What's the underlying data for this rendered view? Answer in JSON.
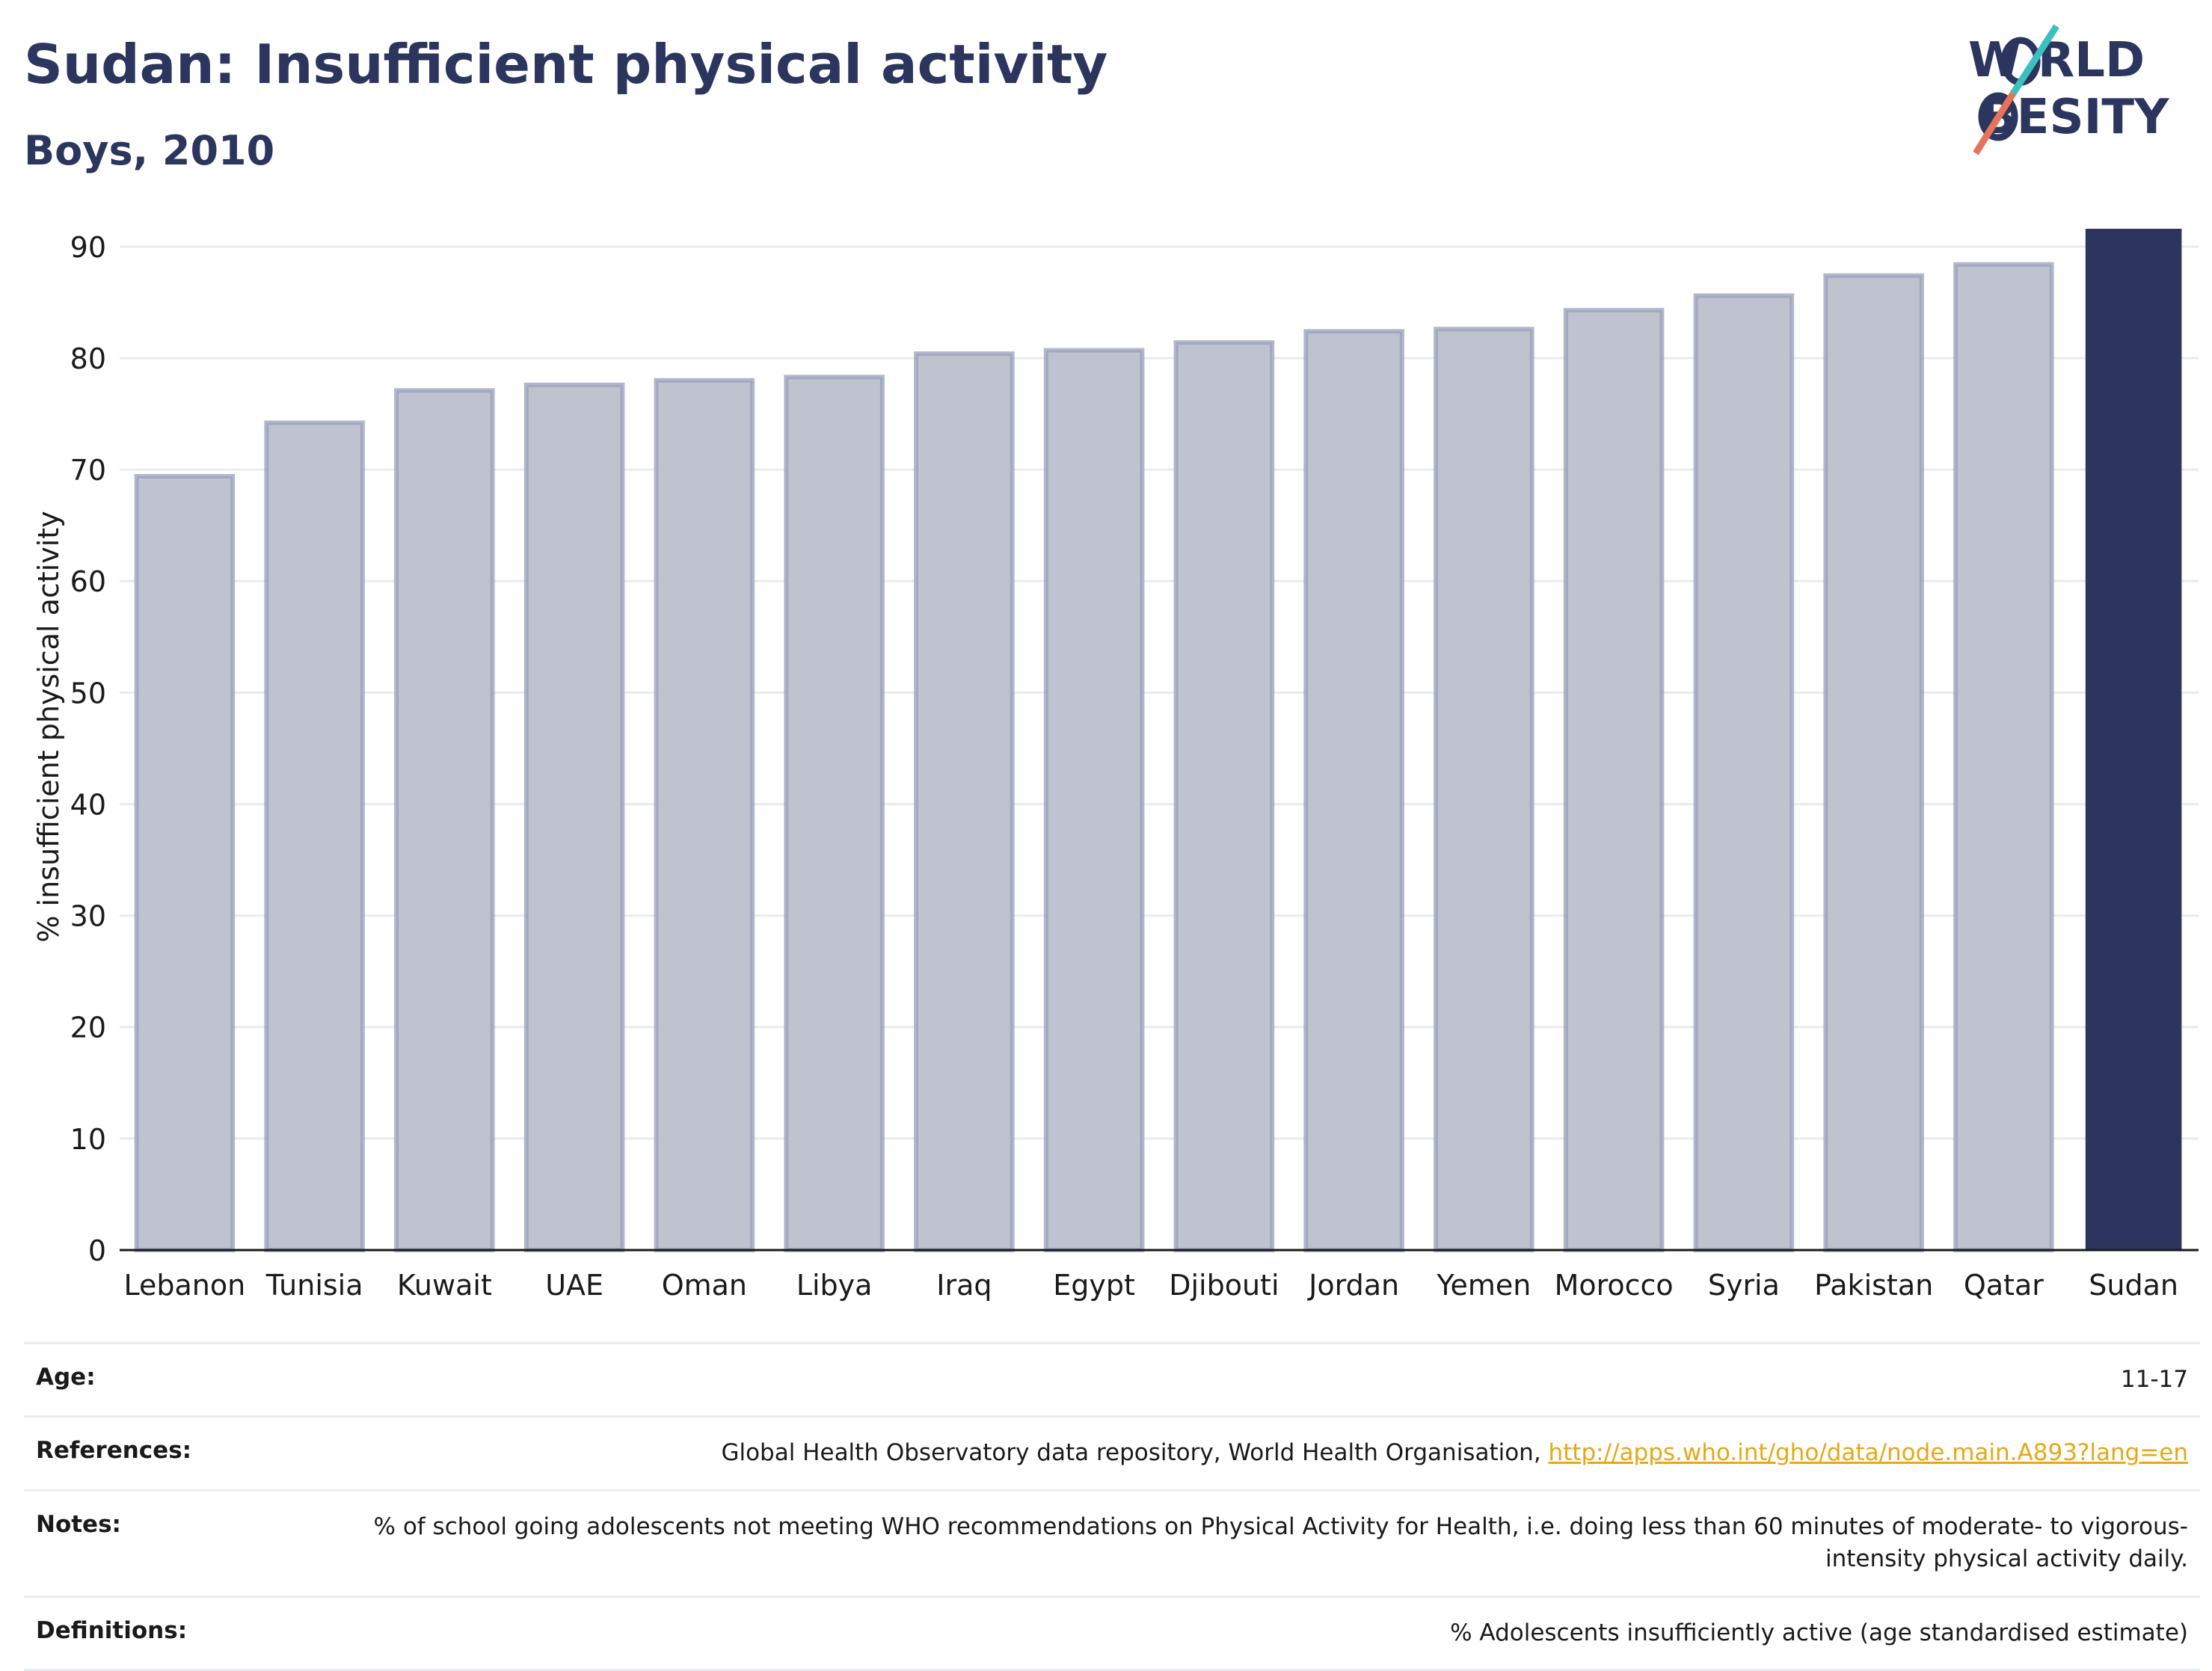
{
  "header": {
    "title": "Sudan: Insufficient physical activity",
    "subtitle": "Boys, 2010"
  },
  "logo": {
    "line1": "W RLD",
    "line2": "BESITY",
    "text": "WORLD OBESITY",
    "colors": {
      "text": "#2b355e",
      "slash_top": "#3bbfbf",
      "slash_bottom": "#e8725a"
    }
  },
  "colors": {
    "bar_fill": "#bfc2cf",
    "bar_stroke": "#9a9fbb",
    "highlight_fill": "#2b355e",
    "grid": "#e8ebf0",
    "axis": "#1a1a1a"
  },
  "chart_data": {
    "type": "bar",
    "title": "Sudan: Insufficient physical activity",
    "subtitle": "Boys, 2010",
    "xlabel": "",
    "ylabel": "% insufficient physical activity",
    "categories": [
      "Lebanon",
      "Tunisia",
      "Kuwait",
      "UAE",
      "Oman",
      "Libya",
      "Iraq",
      "Egypt",
      "Djibouti",
      "Jordan",
      "Yemen",
      "Morocco",
      "Syria",
      "Pakistan",
      "Qatar",
      "Sudan"
    ],
    "values": [
      69.4,
      74.2,
      77.1,
      77.6,
      78.0,
      78.3,
      80.4,
      80.7,
      81.4,
      82.4,
      82.6,
      84.3,
      85.6,
      87.4,
      88.4,
      91.6
    ],
    "highlight": "Sudan",
    "ylim": [
      0,
      92
    ],
    "yticks": [
      0,
      10,
      20,
      30,
      40,
      50,
      60,
      70,
      80,
      90
    ],
    "grid": true,
    "legend": "none"
  },
  "meta": [
    {
      "label": "Age:",
      "value": "11-17"
    },
    {
      "label": "References:",
      "value": "Global Health Observatory data repository, World Health Organisation, ",
      "link": "http://apps.who.int/gho/data/node.main.A893?lang=en"
    },
    {
      "label": "Notes:",
      "value": "% of school going adolescents not meeting WHO recommendations on Physical Activity for Health, i.e. doing less than 60 minutes of moderate- to vigorous-intensity physical activity daily."
    },
    {
      "label": "Definitions:",
      "value": "% Adolescents insufficiently active (age standardised estimate)"
    }
  ]
}
